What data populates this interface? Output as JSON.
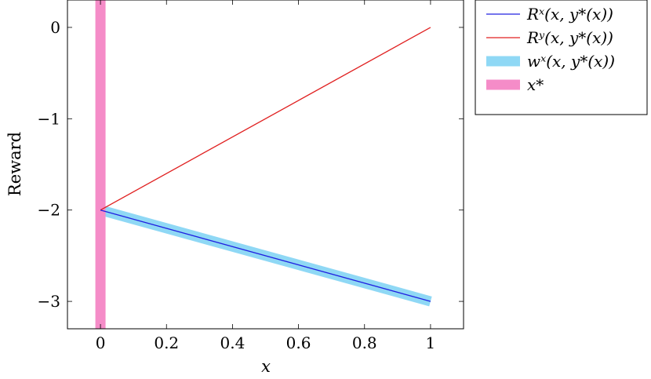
{
  "chart_data": {
    "type": "line",
    "xlabel": "x",
    "ylabel": "Reward",
    "xlim": [
      -0.1,
      1.1
    ],
    "ylim": [
      -3.3,
      0.3
    ],
    "xticks": [
      0,
      0.2,
      0.4,
      0.6,
      0.8,
      1
    ],
    "xtick_labels": [
      "0",
      "0.2",
      "0.4",
      "0.6",
      "0.8",
      "1"
    ],
    "yticks": [
      -3,
      -2,
      -1,
      0
    ],
    "ytick_labels": [
      "−3",
      "−2",
      "−1",
      "0"
    ],
    "legend_position": "outside-right-top",
    "grid": false,
    "series": [
      {
        "name": "Rˣ(x, y*(x))",
        "kind": "line",
        "color": "#2020e0",
        "x": [
          0,
          1
        ],
        "y": [
          -2,
          -3
        ]
      },
      {
        "name": "Rʸ(x, y*(x))",
        "kind": "line",
        "color": "#e02020",
        "x": [
          0,
          1
        ],
        "y": [
          -2,
          0
        ]
      },
      {
        "name": "wˣ(x, y*(x))",
        "kind": "band",
        "color": "#8fd8f5",
        "x": [
          0,
          1
        ],
        "y": [
          -2,
          -3
        ]
      },
      {
        "name": "x*",
        "kind": "vline",
        "color": "#f58cc8",
        "x": [
          0,
          0
        ]
      }
    ]
  }
}
